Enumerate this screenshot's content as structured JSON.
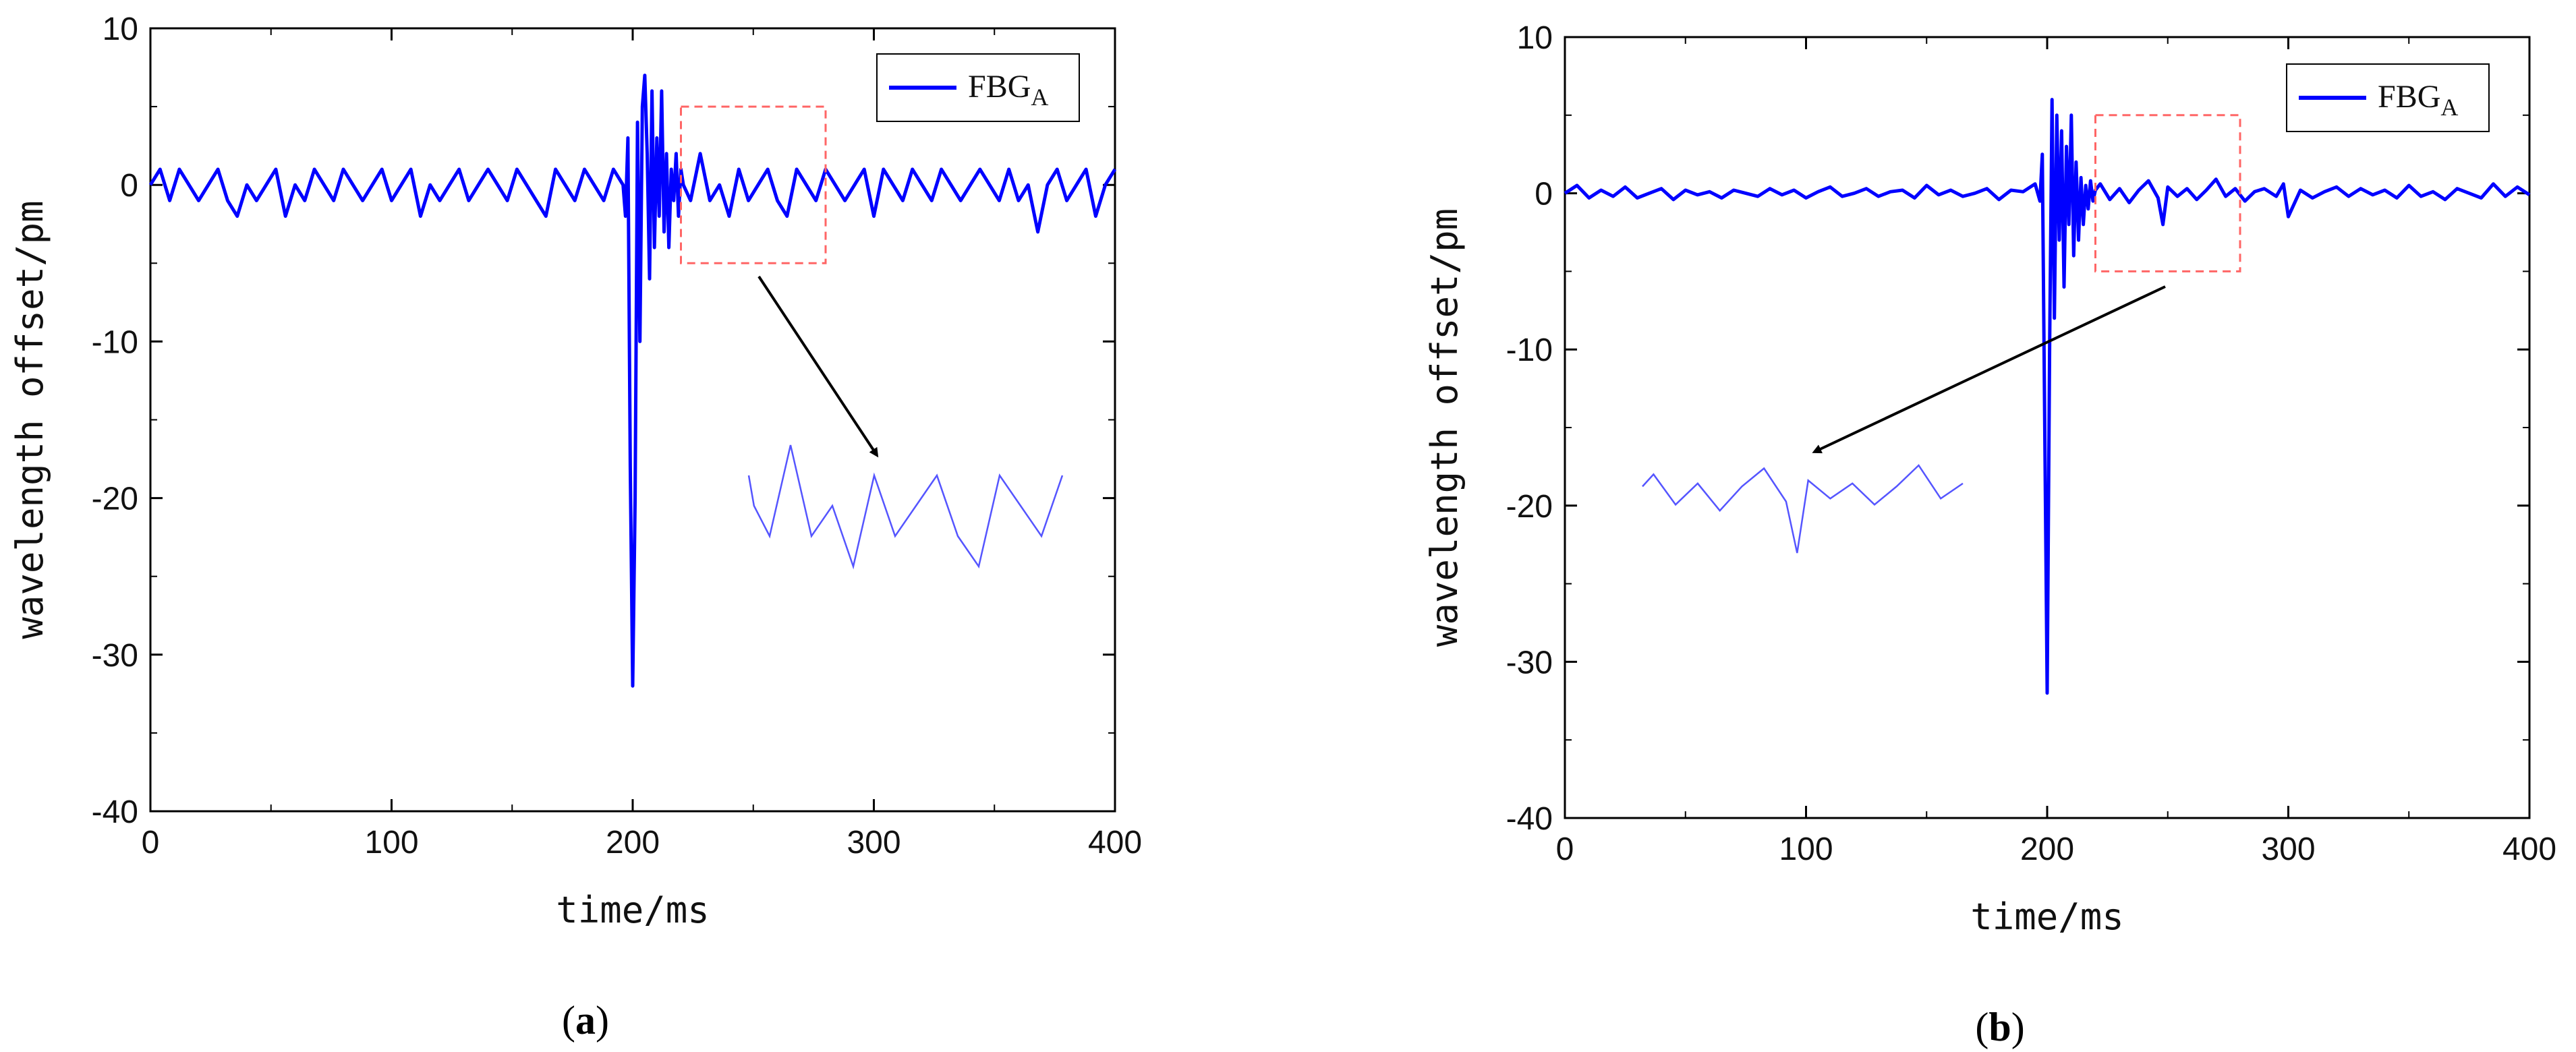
{
  "chart_data": [
    {
      "panel": "a",
      "panel_label": "a",
      "type": "line",
      "xlabel": "time/ms",
      "ylabel": "wavelength offset/pm",
      "xlim": [
        0,
        400
      ],
      "ylim": [
        -40,
        10
      ],
      "xticks": [
        0,
        100,
        200,
        300,
        400
      ],
      "yticks": [
        10,
        0,
        -10,
        -20,
        -30,
        -40
      ],
      "legend": {
        "label": "FBG",
        "subscript": "A",
        "position": "top-right"
      },
      "series": [
        {
          "name": "FBG_A",
          "color": "#0000ff",
          "x": [
            0,
            4,
            8,
            12,
            16,
            20,
            24,
            28,
            32,
            36,
            40,
            44,
            48,
            52,
            56,
            60,
            64,
            68,
            72,
            76,
            80,
            84,
            88,
            92,
            96,
            100,
            104,
            108,
            112,
            116,
            120,
            124,
            128,
            132,
            136,
            140,
            144,
            148,
            152,
            156,
            160,
            164,
            168,
            172,
            176,
            180,
            184,
            188,
            192,
            196,
            197,
            198,
            199,
            200,
            201,
            202,
            203,
            204,
            205,
            206,
            207,
            208,
            209,
            210,
            211,
            212,
            213,
            214,
            215,
            216,
            217,
            218,
            219,
            220,
            221,
            224,
            228,
            232,
            236,
            240,
            244,
            248,
            252,
            256,
            260,
            264,
            268,
            272,
            276,
            280,
            284,
            288,
            292,
            296,
            300,
            304,
            308,
            312,
            316,
            320,
            324,
            328,
            332,
            336,
            340,
            344,
            348,
            352,
            356,
            360,
            364,
            368,
            372,
            376,
            380,
            384,
            388,
            392,
            396,
            400
          ],
          "y": [
            0,
            1,
            -1,
            1,
            0,
            -1,
            0,
            1,
            -1,
            -2,
            0,
            -1,
            0,
            1,
            -2,
            0,
            -1,
            1,
            0,
            -1,
            1,
            0,
            -1,
            0,
            1,
            -1,
            0,
            1,
            -2,
            0,
            -1,
            0,
            1,
            -1,
            0,
            1,
            0,
            -1,
            1,
            0,
            -1,
            -2,
            1,
            0,
            -1,
            1,
            0,
            -1,
            1,
            0,
            -2,
            3,
            -18,
            -32,
            -20,
            4,
            -10,
            5,
            7,
            2,
            -6,
            6,
            -4,
            3,
            -2,
            6,
            -3,
            2,
            -4,
            1,
            -1,
            2,
            -2,
            1,
            0,
            -1,
            2,
            -1,
            0,
            -2,
            1,
            -1,
            0,
            1,
            -1,
            -2,
            1,
            0,
            -1,
            1,
            0,
            -1,
            0,
            1,
            -2,
            1,
            0,
            -1,
            1,
            0,
            -1,
            1,
            0,
            -1,
            0,
            1,
            0,
            -1,
            1,
            -1,
            0,
            -3,
            0,
            1,
            -1,
            0,
            1,
            -2,
            0,
            1
          ]
        }
      ],
      "highlight_box": {
        "x_range": [
          220,
          280
        ],
        "y_range": [
          -5,
          5
        ],
        "color": "#ff6666"
      },
      "inset": {
        "description_free": true,
        "color": "#5555ff"
      }
    },
    {
      "panel": "b",
      "panel_label": "b",
      "type": "line",
      "xlabel": "time/ms",
      "ylabel": "wavelength offset/pm",
      "xlim": [
        0,
        400
      ],
      "ylim": [
        -40,
        10
      ],
      "xticks": [
        0,
        100,
        200,
        300,
        400
      ],
      "yticks": [
        10,
        0,
        -10,
        -20,
        -30,
        -40
      ],
      "legend": {
        "label": "FBG",
        "subscript": "A",
        "position": "top-right"
      },
      "series": [
        {
          "name": "FBG_A",
          "color": "#0000ff",
          "x": [
            0,
            5,
            10,
            15,
            20,
            25,
            30,
            35,
            40,
            45,
            50,
            55,
            60,
            65,
            70,
            75,
            80,
            85,
            90,
            95,
            100,
            105,
            110,
            115,
            120,
            125,
            130,
            135,
            140,
            145,
            150,
            155,
            160,
            165,
            170,
            175,
            180,
            185,
            190,
            195,
            197,
            198,
            199,
            200,
            201,
            202,
            203,
            204,
            205,
            206,
            207,
            208,
            209,
            210,
            211,
            212,
            213,
            214,
            215,
            216,
            217,
            218,
            219,
            220,
            222,
            226,
            230,
            234,
            238,
            242,
            246,
            248,
            250,
            254,
            258,
            262,
            266,
            270,
            274,
            278,
            282,
            286,
            290,
            295,
            298,
            300,
            305,
            310,
            315,
            320,
            325,
            330,
            335,
            340,
            345,
            350,
            355,
            360,
            365,
            370,
            375,
            380,
            385,
            390,
            395,
            400
          ],
          "y": [
            0,
            0.5,
            -0.3,
            0.2,
            -0.2,
            0.4,
            -0.3,
            0,
            0.3,
            -0.4,
            0.2,
            -0.1,
            0.1,
            -0.3,
            0.2,
            0,
            -0.2,
            0.3,
            -0.1,
            0.2,
            -0.3,
            0.1,
            0.4,
            -0.2,
            0,
            0.3,
            -0.2,
            0.1,
            0.2,
            -0.3,
            0.5,
            -0.1,
            0.2,
            -0.2,
            0,
            0.3,
            -0.4,
            0.2,
            0.1,
            0.6,
            -0.5,
            2.5,
            -15,
            -32,
            -10,
            6,
            -8,
            5,
            -3,
            4,
            -6,
            3,
            -2,
            5,
            -4,
            2,
            -3,
            1,
            -2,
            0.5,
            -1,
            0.8,
            -0.5,
            0.2,
            0.6,
            -0.4,
            0.3,
            -0.6,
            0.2,
            0.8,
            -0.3,
            -2,
            0.4,
            -0.2,
            0.3,
            -0.4,
            0.2,
            0.9,
            -0.2,
            0.3,
            -0.5,
            0.1,
            0.3,
            -0.2,
            0.6,
            -1.5,
            0.2,
            -0.3,
            0.1,
            0.4,
            -0.2,
            0.3,
            -0.1,
            0.2,
            -0.3,
            0.5,
            -0.2,
            0.1,
            -0.4,
            0.3,
            0,
            -0.3,
            0.6,
            -0.2,
            0.4,
            -0.1
          ]
        }
      ],
      "highlight_box": {
        "x_range": [
          220,
          280
        ],
        "y_range": [
          -5,
          5
        ],
        "color": "#ff6666"
      },
      "inset": {
        "description_free": true,
        "color": "#5555ff"
      }
    }
  ]
}
